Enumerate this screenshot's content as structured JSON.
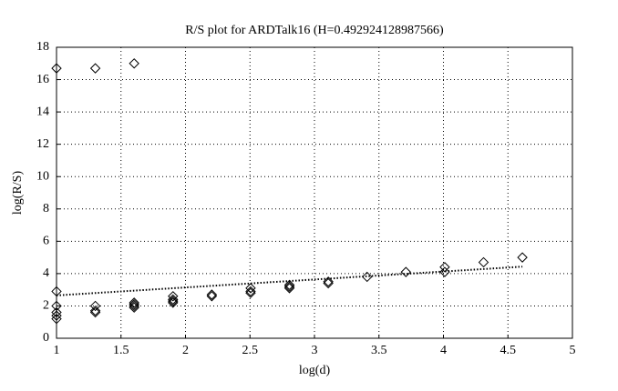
{
  "chart_data": {
    "type": "scatter",
    "title": "R/S plot for ARDTalk16 (H=0.492924128987566)",
    "xlabel": "log(d)",
    "ylabel": "log(R/S)",
    "xlim": [
      1,
      5
    ],
    "xticks": [
      1,
      1.5,
      2,
      2.5,
      3,
      3.5,
      4,
      4.5,
      5
    ],
    "ylim": [
      0,
      18
    ],
    "yticks": [
      0,
      2,
      4,
      6,
      8,
      10,
      12,
      14,
      16,
      18
    ],
    "grid": true,
    "series": [
      {
        "type": "scatter",
        "marker": "diamond",
        "color": "#000000",
        "x": [
          1,
          1,
          1,
          1,
          1,
          1,
          1.301,
          1.301,
          1.301,
          1.301,
          1.602,
          1.602,
          1.602,
          1.602,
          1.602,
          1.903,
          1.903,
          1.903,
          1.903,
          2.204,
          2.204,
          2.505,
          2.505,
          2.505,
          2.806,
          2.806,
          2.806,
          3.107,
          3.107,
          3.408,
          3.709,
          4.01,
          4.01,
          4.311,
          4.612
        ],
        "values": [
          16.7,
          2.9,
          2.0,
          1.6,
          1.4,
          1.2,
          16.7,
          2.0,
          1.7,
          1.6,
          17.0,
          2.2,
          2.1,
          2.0,
          1.9,
          2.6,
          2.4,
          2.3,
          2.2,
          2.7,
          2.6,
          3.1,
          2.9,
          2.8,
          3.3,
          3.2,
          3.1,
          3.5,
          3.4,
          3.8,
          4.1,
          4.4,
          4.1,
          4.7,
          5.0
        ]
      },
      {
        "type": "line",
        "style": "dotted",
        "color": "#000000",
        "x": [
          1,
          4.612
        ],
        "values": [
          2.65,
          4.43
        ]
      }
    ]
  }
}
